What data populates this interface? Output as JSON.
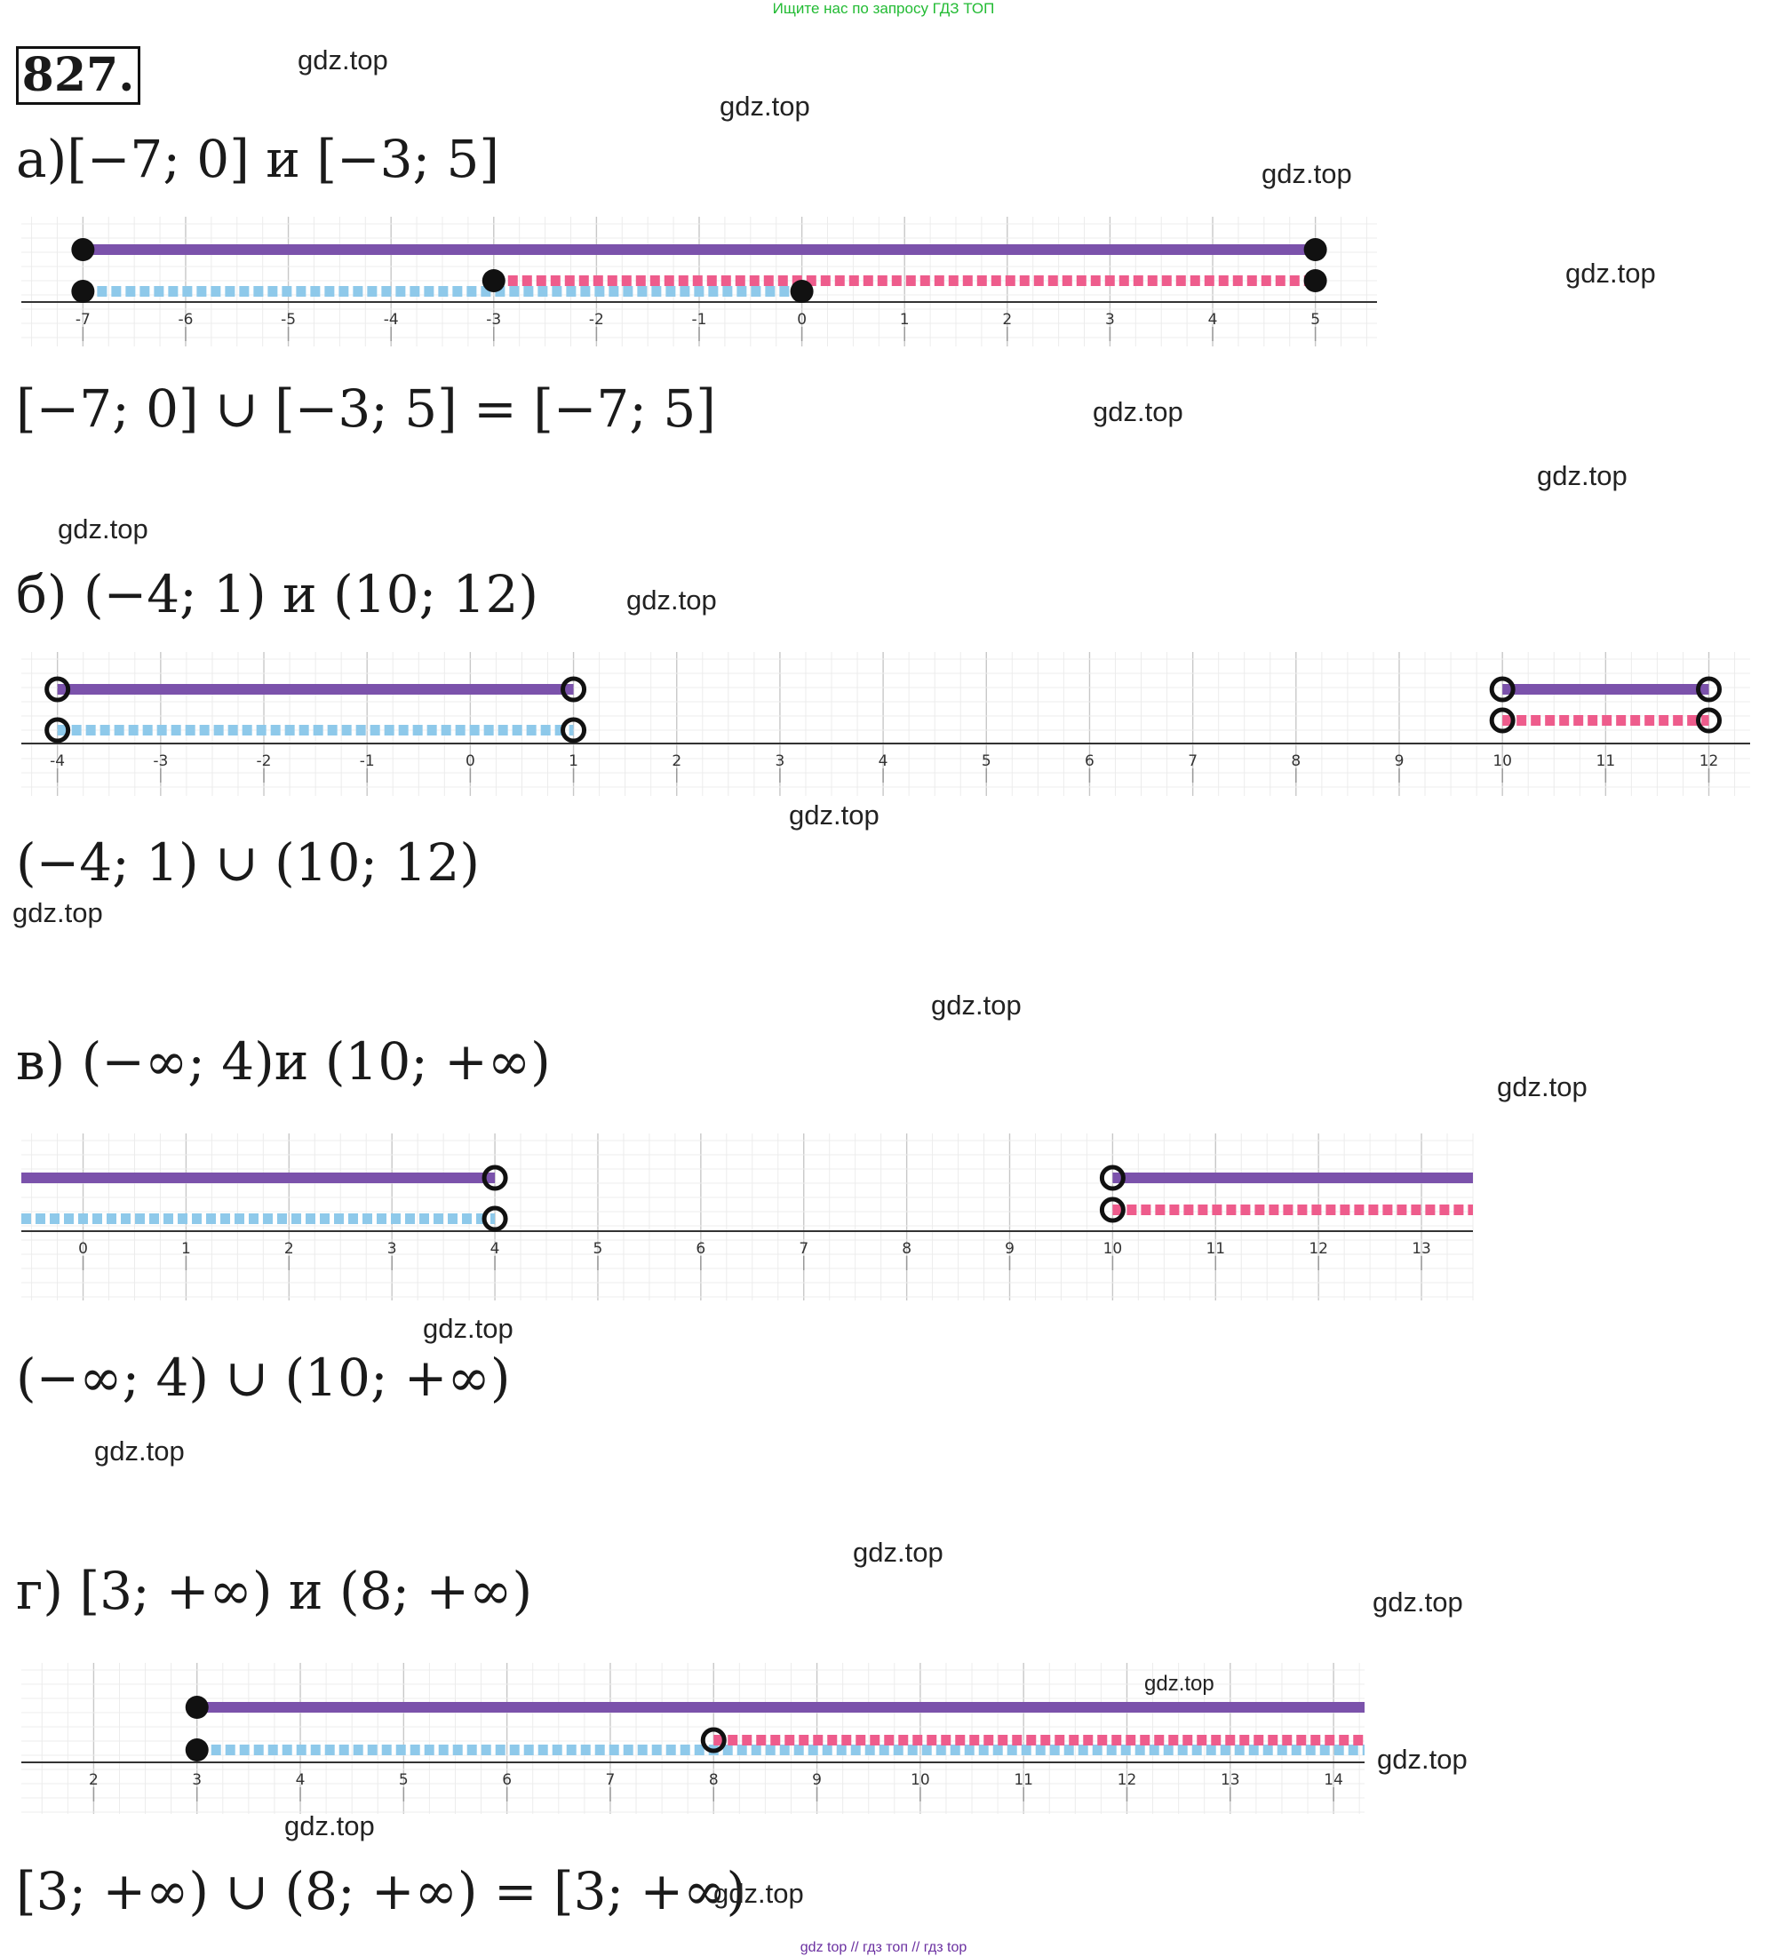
{
  "header_link": "Ищите нас по запросу ГДЗ ТОП",
  "problem_number": "827.",
  "watermark": "gdz.top",
  "footer": "gdz top  //  гдз топ  //  гдз top",
  "colors": {
    "union": "#7b52ab",
    "first_interval": "#8ec9ea",
    "second_interval": "#ee5c8c",
    "endpoint": "#111111"
  },
  "parts": [
    {
      "label": "а)",
      "title": "а)[−7; 0] и [−3; 5]",
      "result": "[−7; 0]  ∪  [−3; 5] = [−7; 5]",
      "axis": {
        "min": -7.6,
        "max": 5.6,
        "ticks": [
          -7,
          -6,
          -5,
          -4,
          -3,
          -2,
          -1,
          0,
          1,
          2,
          3,
          4,
          5
        ],
        "tick_labels": [
          "-7",
          "-6",
          "-5",
          "-4",
          "-3",
          "-2",
          "-1",
          "0",
          "1",
          "2",
          "3",
          "4",
          "5"
        ]
      },
      "union": [
        {
          "from": -7,
          "to": 5,
          "from_closed": true,
          "to_closed": true
        }
      ],
      "first": {
        "from": -7,
        "to": 0,
        "from_closed": true,
        "to_closed": true
      },
      "second": {
        "from": -3,
        "to": 5,
        "from_closed": true,
        "to_closed": true
      }
    },
    {
      "label": "б)",
      "title": "б) (−4; 1) и (10; 12)",
      "result": "(−4; 1)  ∪ (10; 12)",
      "axis": {
        "min": -4.35,
        "max": 12.4,
        "ticks": [
          -4,
          -3,
          -2,
          -1,
          0,
          1,
          2,
          3,
          4,
          5,
          6,
          7,
          8,
          9,
          10,
          11,
          12
        ],
        "tick_labels": [
          "-4",
          "-3",
          "-2",
          "-1",
          "0",
          "1",
          "2",
          "3",
          "4",
          "5",
          "6",
          "7",
          "8",
          "9",
          "10",
          "11",
          "12"
        ]
      },
      "union": [
        {
          "from": -4,
          "to": 1,
          "from_closed": false,
          "to_closed": false
        },
        {
          "from": 10,
          "to": 12,
          "from_closed": false,
          "to_closed": false
        }
      ],
      "first": {
        "from": -4,
        "to": 1,
        "from_closed": false,
        "to_closed": false
      },
      "second": {
        "from": 10,
        "to": 12,
        "from_closed": false,
        "to_closed": false
      }
    },
    {
      "label": "в)",
      "title": "в)  (−∞; 4)и (10; +∞)",
      "result": "(−∞; 4) ∪ (10; +∞)",
      "axis": {
        "min": -0.6,
        "max": 13.5,
        "ticks": [
          0,
          1,
          2,
          3,
          4,
          5,
          6,
          7,
          8,
          9,
          10,
          11,
          12,
          13
        ],
        "tick_labels": [
          "0",
          "1",
          "2",
          "3",
          "4",
          "5",
          "6",
          "7",
          "8",
          "9",
          "10",
          "11",
          "12",
          "13"
        ]
      },
      "union": [
        {
          "from": "-inf",
          "to": 4,
          "from_closed": false,
          "to_closed": false
        },
        {
          "from": 10,
          "to": "+inf",
          "from_closed": false,
          "to_closed": false
        }
      ],
      "first": {
        "from": "-inf",
        "to": 4,
        "from_closed": false,
        "to_closed": false
      },
      "second": {
        "from": 10,
        "to": "+inf",
        "from_closed": false,
        "to_closed": false
      }
    },
    {
      "label": "г)",
      "title": "г) [3; +∞) и (8; +∞)",
      "result": "[3; +∞) ∪  (8; +∞) = [3; +∞)",
      "axis": {
        "min": 1.3,
        "max": 14.3,
        "ticks": [
          2,
          3,
          4,
          5,
          6,
          7,
          8,
          9,
          10,
          11,
          12,
          13,
          14
        ],
        "tick_labels": [
          "2",
          "3",
          "4",
          "5",
          "6",
          "7",
          "8",
          "9",
          "10",
          "11",
          "12",
          "13",
          "14"
        ]
      },
      "union": [
        {
          "from": 3,
          "to": "+inf",
          "from_closed": true,
          "to_closed": false
        }
      ],
      "first": {
        "from": 3,
        "to": "+inf",
        "from_closed": true,
        "to_closed": false
      },
      "second": {
        "from": 8,
        "to": "+inf",
        "from_closed": false,
        "to_closed": false
      }
    }
  ]
}
